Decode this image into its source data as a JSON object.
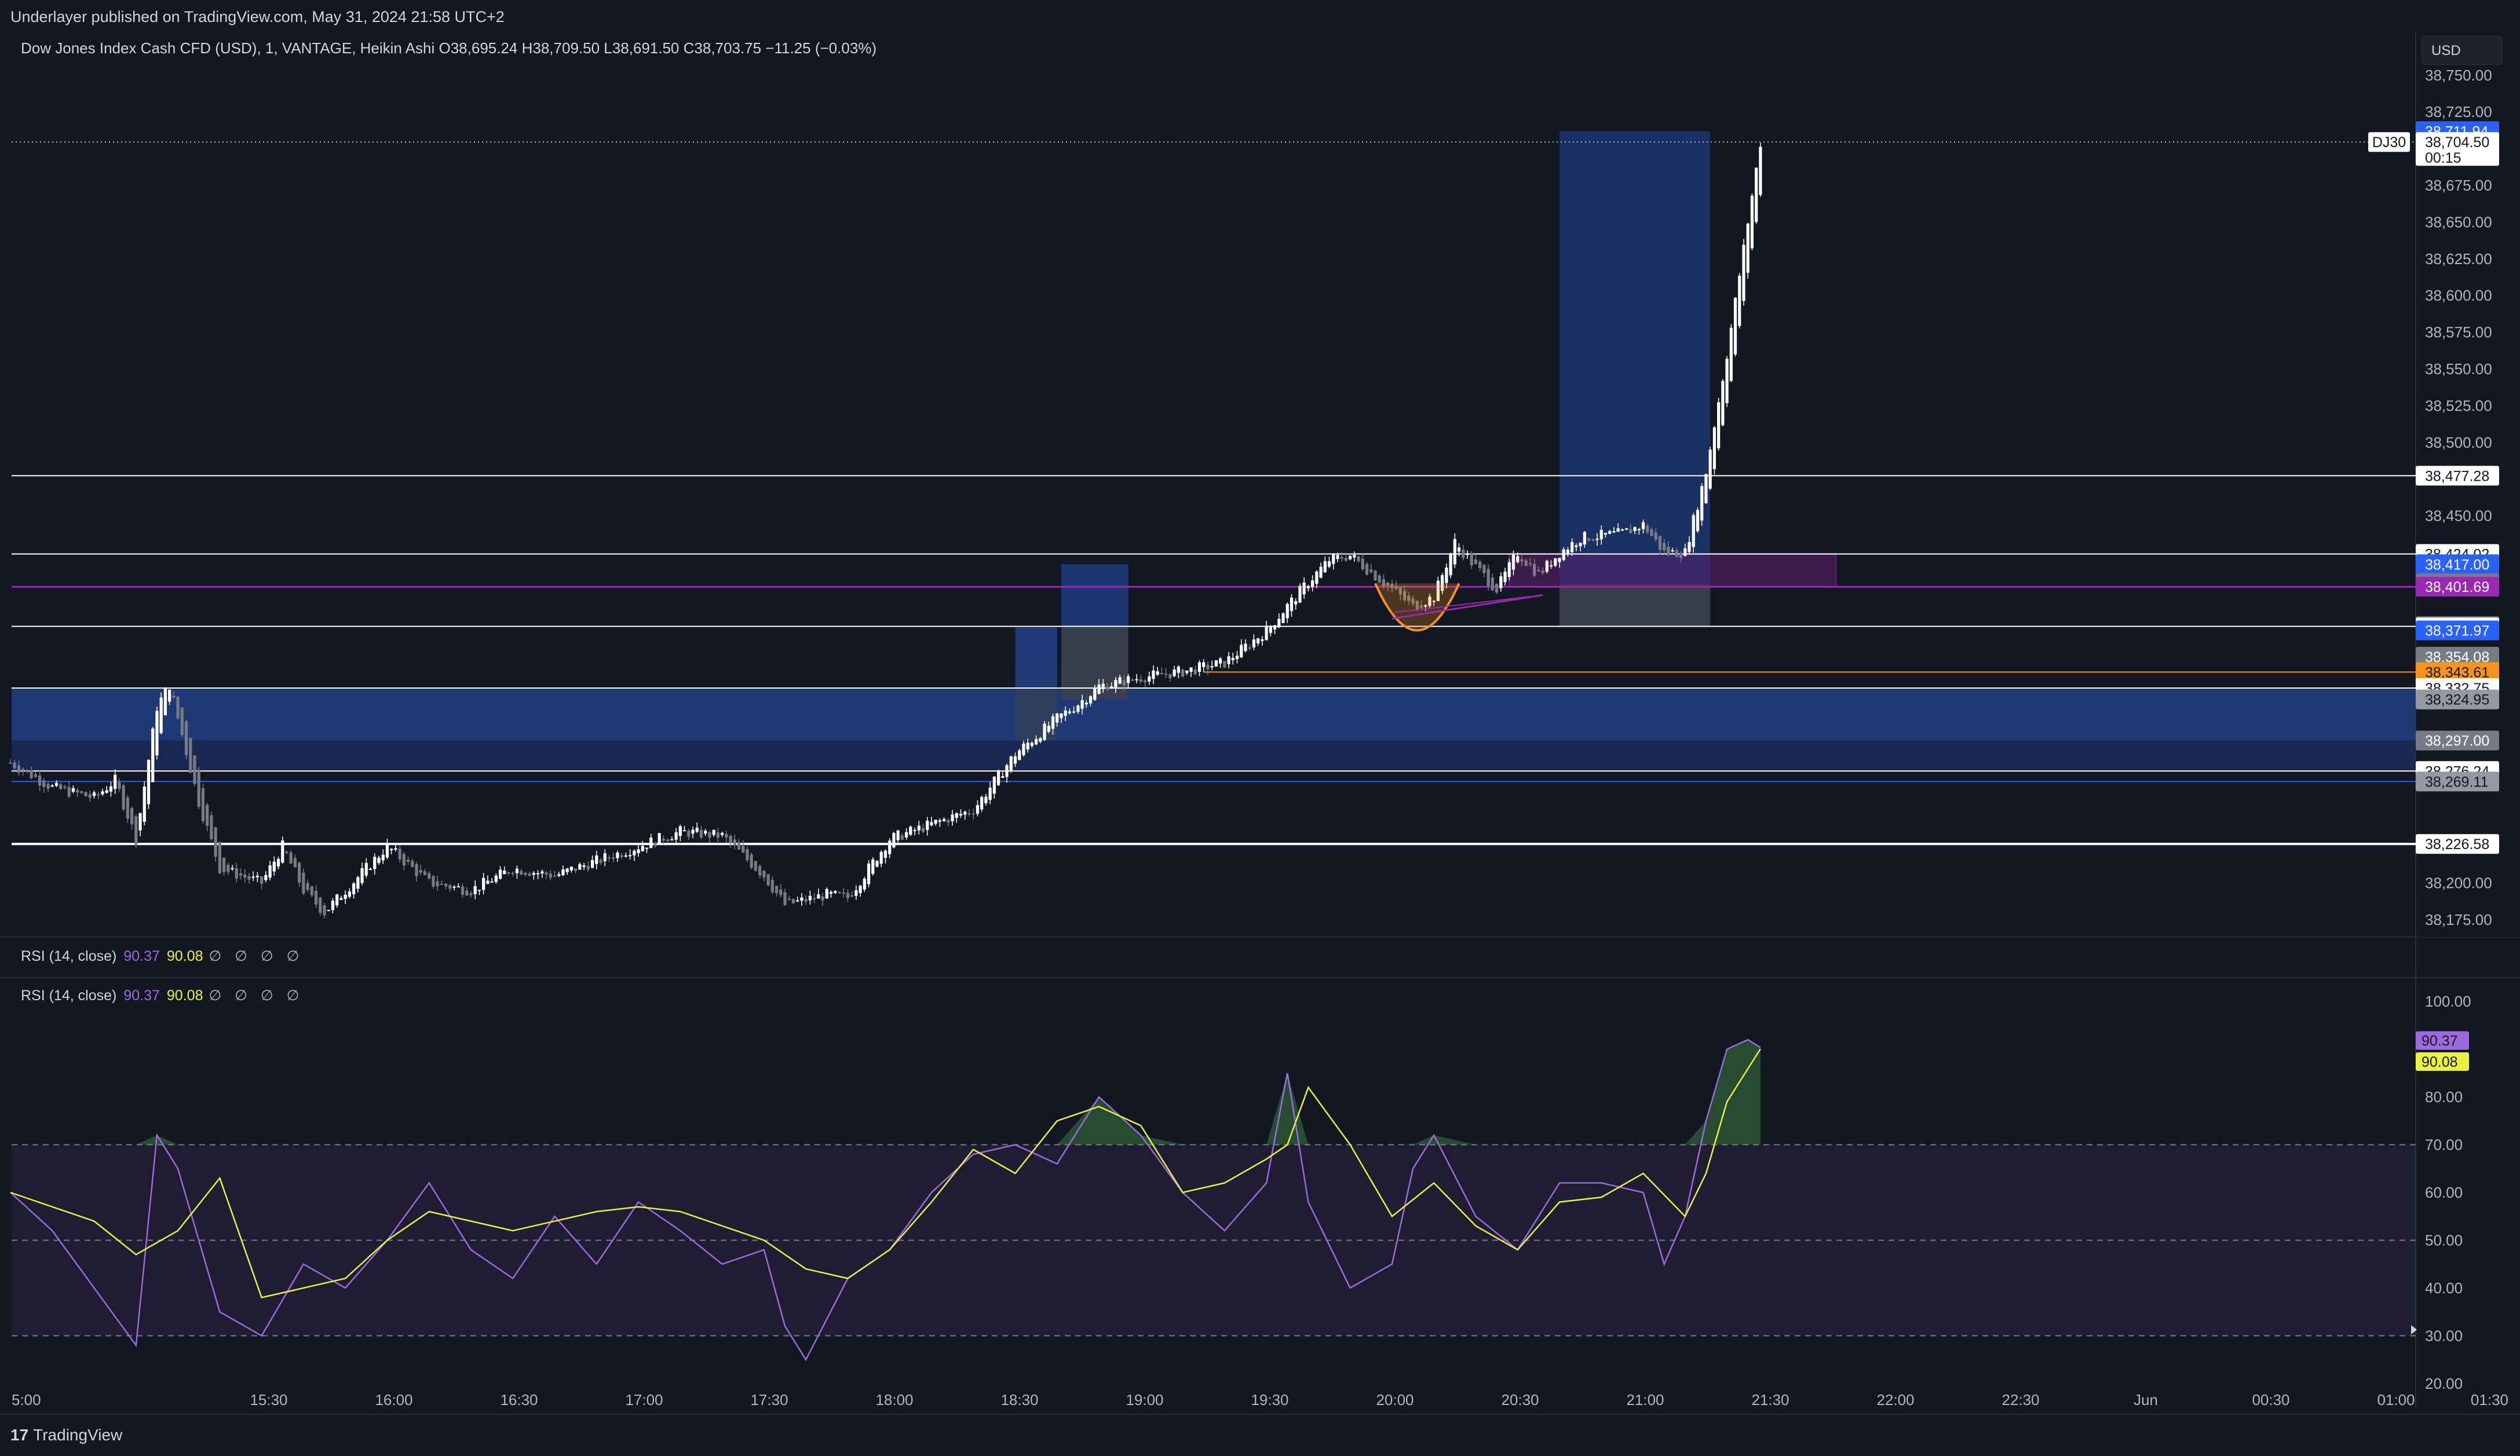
{
  "header": {
    "published": "Underlayer published on TradingView.com, May 31, 2024 21:58 UTC+2",
    "symbol_line": "Dow Jones Index Cash CFD (USD), 1, VANTAGE, Heikin Ashi  O38,695.24  H38,709.50  L38,691.50  C38,703.75  −11.25 (−0.03%)",
    "currency": "USD",
    "symbol_tag": "DJ30"
  },
  "rsi_legend_1": {
    "label": "RSI (14, close)",
    "value": "90.37",
    "signal": "90.08",
    "empties": "∅ ∅ ∅ ∅"
  },
  "rsi_legend_2": {
    "label": "RSI (14, close)",
    "value": "90.37",
    "signal": "90.08",
    "empties": "∅ ∅ ∅ ∅"
  },
  "footer": {
    "brand": "TradingView",
    "mark": "17"
  },
  "price_axis": {
    "ticks": [
      "38,750.00",
      "38,725.00",
      "38,675.00",
      "38,650.00",
      "38,625.00",
      "38,600.00",
      "38,575.00",
      "38,550.00",
      "38,525.00",
      "38,500.00",
      "38,450.00",
      "38,200.00",
      "38,175.00"
    ],
    "current_price": "38,704.50",
    "countdown": "00:15",
    "high_tag": "38,711.94"
  },
  "level_tags": [
    {
      "text": "38,477.28",
      "price": 38477.28,
      "bg": "#ffffff",
      "fg": "#131722"
    },
    {
      "text": "38,424.02",
      "price": 38424.02,
      "bg": "#ffffff",
      "fg": "#131722"
    },
    {
      "text": "38,417.00",
      "price": 38417.0,
      "bg": "#2962ff",
      "fg": "#ffffff"
    },
    {
      "text": "38,404.01",
      "price": 38404.01,
      "bg": "#787b86",
      "fg": "#ffffff"
    },
    {
      "text": "38,401.69",
      "price": 38401.69,
      "bg": "#9c27b0",
      "fg": "#ffffff"
    },
    {
      "text": "38,374.70",
      "price": 38374.7,
      "bg": "#9598a1",
      "fg": "#131722"
    },
    {
      "text": "38,373.90",
      "price": 38373.9,
      "bg": "#ffffff",
      "fg": "#131722"
    },
    {
      "text": "38,371.97",
      "price": 38371.97,
      "bg": "#2962ff",
      "fg": "#ffffff"
    },
    {
      "text": "38,354.08",
      "price": 38354.08,
      "bg": "#787b86",
      "fg": "#ffffff"
    },
    {
      "text": "38,343.61",
      "price": 38343.61,
      "bg": "#f7931a",
      "fg": "#131722"
    },
    {
      "text": "38,332.75",
      "price": 38332.75,
      "bg": "#ffffff",
      "fg": "#131722"
    },
    {
      "text": "38,324.95",
      "price": 38324.95,
      "bg": "#9598a1",
      "fg": "#131722"
    },
    {
      "text": "38,297.00",
      "price": 38297.0,
      "bg": "#787b86",
      "fg": "#ffffff"
    },
    {
      "text": "38,276.24",
      "price": 38276.24,
      "bg": "#ffffff",
      "fg": "#131722"
    },
    {
      "text": "38,269.11",
      "price": 38269.11,
      "bg": "#9598a1",
      "fg": "#131722"
    },
    {
      "text": "38,226.58",
      "price": 38226.58,
      "bg": "#ffffff",
      "fg": "#131722"
    }
  ],
  "rsi_axis": {
    "ticks": [
      "100.00",
      "80.00",
      "70.00",
      "60.00",
      "50.00",
      "40.00",
      "30.00",
      "20.00"
    ],
    "rsi_tag": "90.37",
    "signal_tag": "90.08"
  },
  "time_axis": {
    "labels": [
      "5:00",
      "15:30",
      "16:00",
      "16:30",
      "17:00",
      "17:30",
      "18:00",
      "18:30",
      "19:00",
      "19:30",
      "20:00",
      "20:30",
      "21:00",
      "21:30",
      "22:00",
      "22:30",
      "Jun",
      "00:30",
      "01:00",
      "01:30"
    ]
  },
  "colors": {
    "background": "#131722",
    "candle_up": "#ffffff",
    "candle_down": "#787b86",
    "rsi_line": "#9c6ade",
    "rsi_signal": "#e9f23c",
    "zone_blue": "#1e3a7a",
    "zone_purple": "#9c27b0",
    "arc_orange": "#f7931a"
  },
  "chart_data": [
    {
      "type": "candlestick",
      "title": "",
      "style": "Heikin Ashi",
      "interval": "1",
      "ylim": [
        38165,
        38760
      ],
      "xlim": [
        "15:00",
        "01:30"
      ],
      "horizontal_levels": [
        38477.28,
        38424.02,
        38404.01,
        38374.7,
        38343.61,
        38332.75,
        38276.24,
        38226.58
      ],
      "path_close": [
        {
          "t": "15:00",
          "v": 38282
        },
        {
          "t": "15:10",
          "v": 38265
        },
        {
          "t": "15:20",
          "v": 38258
        },
        {
          "t": "15:25",
          "v": 38270
        },
        {
          "t": "15:30",
          "v": 38230
        },
        {
          "t": "15:35",
          "v": 38320
        },
        {
          "t": "15:38",
          "v": 38335
        },
        {
          "t": "15:45",
          "v": 38255
        },
        {
          "t": "15:50",
          "v": 38210
        },
        {
          "t": "16:00",
          "v": 38200
        },
        {
          "t": "16:05",
          "v": 38225
        },
        {
          "t": "16:10",
          "v": 38195
        },
        {
          "t": "16:15",
          "v": 38180
        },
        {
          "t": "16:20",
          "v": 38195
        },
        {
          "t": "16:30",
          "v": 38225
        },
        {
          "t": "16:40",
          "v": 38200
        },
        {
          "t": "16:50",
          "v": 38195
        },
        {
          "t": "17:00",
          "v": 38210
        },
        {
          "t": "17:10",
          "v": 38205
        },
        {
          "t": "17:20",
          "v": 38215
        },
        {
          "t": "17:30",
          "v": 38225
        },
        {
          "t": "17:40",
          "v": 38235
        },
        {
          "t": "17:50",
          "v": 38232
        },
        {
          "t": "18:00",
          "v": 38205
        },
        {
          "t": "18:05",
          "v": 38185
        },
        {
          "t": "18:15",
          "v": 38192
        },
        {
          "t": "18:20",
          "v": 38190
        },
        {
          "t": "18:30",
          "v": 38230
        },
        {
          "t": "18:40",
          "v": 38240
        },
        {
          "t": "18:50",
          "v": 38250
        },
        {
          "t": "19:00",
          "v": 38288
        },
        {
          "t": "19:10",
          "v": 38312
        },
        {
          "t": "19:15",
          "v": 38322
        },
        {
          "t": "19:20",
          "v": 38334
        },
        {
          "t": "19:30",
          "v": 38340
        },
        {
          "t": "19:40",
          "v": 38344
        },
        {
          "t": "19:50",
          "v": 38350
        },
        {
          "t": "20:00",
          "v": 38372
        },
        {
          "t": "20:10",
          "v": 38405
        },
        {
          "t": "20:15",
          "v": 38420
        },
        {
          "t": "20:20",
          "v": 38423
        },
        {
          "t": "20:30",
          "v": 38400
        },
        {
          "t": "20:35",
          "v": 38388
        },
        {
          "t": "20:40",
          "v": 38395
        },
        {
          "t": "20:45",
          "v": 38432
        },
        {
          "t": "20:50",
          "v": 38415
        },
        {
          "t": "20:55",
          "v": 38400
        },
        {
          "t": "21:00",
          "v": 38425
        },
        {
          "t": "21:05",
          "v": 38410
        },
        {
          "t": "21:10",
          "v": 38425
        },
        {
          "t": "21:15",
          "v": 38435
        },
        {
          "t": "21:25",
          "v": 38438
        },
        {
          "t": "21:30",
          "v": 38444
        },
        {
          "t": "21:35",
          "v": 38425
        },
        {
          "t": "21:40",
          "v": 38425
        },
        {
          "t": "21:45",
          "v": 38480
        },
        {
          "t": "21:50",
          "v": 38560
        },
        {
          "t": "21:55",
          "v": 38650
        },
        {
          "t": "21:58",
          "v": 38704
        }
      ]
    },
    {
      "type": "line",
      "title": "RSI (14, close)",
      "ylim": [
        15,
        105
      ],
      "bands": [
        30,
        50,
        70
      ],
      "series": [
        {
          "name": "RSI (14, close)",
          "x": [
            "15:00",
            "15:10",
            "15:20",
            "15:30",
            "15:35",
            "15:40",
            "15:50",
            "16:00",
            "16:10",
            "16:20",
            "16:30",
            "16:40",
            "16:50",
            "17:00",
            "17:10",
            "17:20",
            "17:30",
            "17:40",
            "17:50",
            "18:00",
            "18:05",
            "18:10",
            "18:20",
            "18:30",
            "18:40",
            "18:50",
            "19:00",
            "19:10",
            "19:20",
            "19:30",
            "19:40",
            "19:50",
            "20:00",
            "20:05",
            "20:10",
            "20:20",
            "20:30",
            "20:35",
            "20:40",
            "20:50",
            "21:00",
            "21:10",
            "21:20",
            "21:30",
            "21:35",
            "21:40",
            "21:45",
            "21:50",
            "21:55",
            "21:58"
          ],
          "values": [
            60,
            52,
            40,
            28,
            72,
            65,
            35,
            30,
            45,
            40,
            50,
            62,
            48,
            42,
            55,
            45,
            58,
            52,
            45,
            48,
            32,
            25,
            42,
            48,
            60,
            68,
            70,
            66,
            80,
            72,
            60,
            52,
            62,
            85,
            58,
            40,
            45,
            65,
            72,
            55,
            48,
            62,
            62,
            60,
            45,
            55,
            75,
            90,
            92,
            90.37
          ]
        },
        {
          "name": "Signal",
          "x": [
            "15:00",
            "15:20",
            "15:30",
            "15:40",
            "15:50",
            "16:00",
            "16:20",
            "16:30",
            "16:40",
            "17:00",
            "17:20",
            "17:30",
            "17:40",
            "18:00",
            "18:10",
            "18:20",
            "18:30",
            "18:40",
            "18:50",
            "19:00",
            "19:10",
            "19:20",
            "19:30",
            "19:40",
            "19:50",
            "20:00",
            "20:05",
            "20:10",
            "20:20",
            "20:30",
            "20:40",
            "20:50",
            "21:00",
            "21:10",
            "21:20",
            "21:30",
            "21:40",
            "21:45",
            "21:50",
            "21:58"
          ],
          "values": [
            60,
            54,
            47,
            52,
            63,
            38,
            42,
            50,
            56,
            52,
            56,
            57,
            56,
            50,
            44,
            42,
            48,
            58,
            69,
            64,
            75,
            78,
            74,
            60,
            62,
            67,
            70,
            82,
            70,
            55,
            62,
            53,
            48,
            58,
            59,
            64,
            55,
            64,
            79,
            90.08
          ]
        }
      ]
    }
  ]
}
